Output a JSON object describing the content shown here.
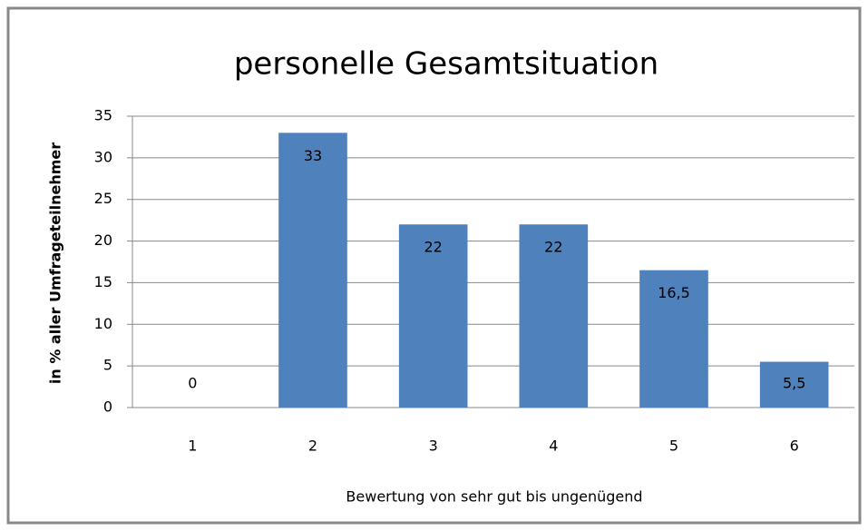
{
  "chart_data": {
    "type": "bar",
    "title": "personelle Gesamtsituation",
    "x_label": "Bewertung von sehr gut bis ungenügend",
    "y_label": "in % aller Umfrageteilnehmer",
    "categories": [
      "1",
      "2",
      "3",
      "4",
      "5",
      "6"
    ],
    "values": [
      0,
      33,
      22,
      22,
      16.5,
      5.5
    ],
    "value_labels": [
      "0",
      "33",
      "22",
      "22",
      "16,5",
      "5,5"
    ],
    "color": "#4f81bd",
    "ylim": [
      0,
      35
    ],
    "yticks": [
      0,
      5,
      10,
      15,
      20,
      25,
      30,
      35
    ],
    "grid": true
  }
}
